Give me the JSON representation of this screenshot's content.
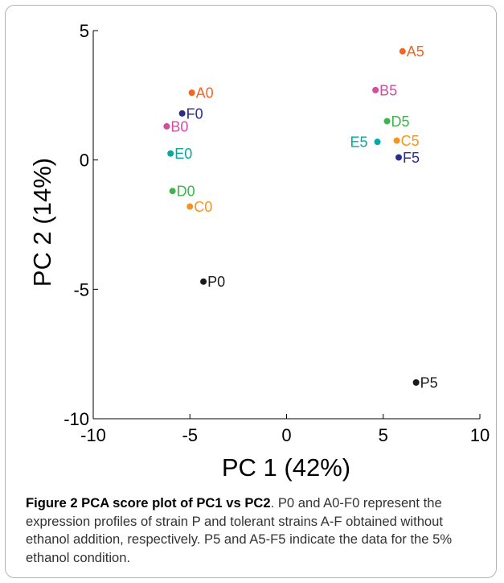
{
  "chart_data": {
    "type": "scatter",
    "xlabel": "PC 1 (42%)",
    "ylabel": "PC 2 (14%)",
    "xlim": [
      -10,
      10
    ],
    "ylim": [
      -10,
      5
    ],
    "xticks": [
      -10,
      -5,
      0,
      5,
      10
    ],
    "yticks": [
      5,
      0,
      -5,
      -10
    ],
    "points": [
      {
        "label": "A0",
        "x": -4.9,
        "y": 2.6,
        "color": "#f26522",
        "label_side": "right"
      },
      {
        "label": "F0",
        "x": -5.4,
        "y": 1.8,
        "color": "#2b2d87",
        "label_side": "right"
      },
      {
        "label": "B0",
        "x": -6.2,
        "y": 1.3,
        "color": "#d14f9e",
        "label_side": "right"
      },
      {
        "label": "E0",
        "x": -6.0,
        "y": 0.25,
        "color": "#00aaa0",
        "label_side": "right"
      },
      {
        "label": "D0",
        "x": -5.9,
        "y": -1.2,
        "color": "#3db54a",
        "label_side": "right"
      },
      {
        "label": "C0",
        "x": -5.0,
        "y": -1.8,
        "color": "#f7941d",
        "label_side": "right"
      },
      {
        "label": "P0",
        "x": -4.3,
        "y": -4.7,
        "color": "#1a1a1a",
        "label_side": "right"
      },
      {
        "label": "A5",
        "x": 6.0,
        "y": 4.2,
        "color": "#f26522",
        "label_side": "right"
      },
      {
        "label": "B5",
        "x": 4.6,
        "y": 2.7,
        "color": "#d14f9e",
        "label_side": "right"
      },
      {
        "label": "D5",
        "x": 5.2,
        "y": 1.5,
        "color": "#3db54a",
        "label_side": "right"
      },
      {
        "label": "C5",
        "x": 5.7,
        "y": 0.75,
        "color": "#f7941d",
        "label_side": "right"
      },
      {
        "label": "E5",
        "x": 4.7,
        "y": 0.7,
        "color": "#00aaa0",
        "label_side": "left"
      },
      {
        "label": "F5",
        "x": 5.8,
        "y": 0.1,
        "color": "#2b2d87",
        "label_side": "right"
      },
      {
        "label": "P5",
        "x": 6.7,
        "y": -8.6,
        "color": "#1a1a1a",
        "label_side": "right"
      }
    ]
  },
  "caption": {
    "title": "Figure 2 PCA score plot of PC1 vs PC2",
    "text": ". P0 and A0-F0 represent the expression profiles of strain P and tolerant strains A-F obtained without ethanol addition, respectively. P5 and A5-F5 indicate the data for the 5% ethanol condition."
  }
}
